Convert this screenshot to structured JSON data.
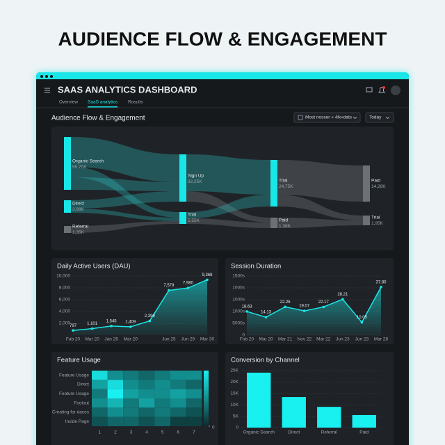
{
  "page_title": "AUDIENCE FLOW & ENGAGEMENT",
  "header": {
    "title": "SAAS ANALYTICS DASHBOARD",
    "tabs": [
      "Overview",
      "SaaS analytics",
      "Rosults"
    ],
    "active_tab": 1
  },
  "section": {
    "title": "Audience Flow & Engagement",
    "filter": "Most nosser + 4lk«dats",
    "range": "Today"
  },
  "chart_data": [
    {
      "type": "sankey",
      "nodes": [
        {
          "name": "Organic Search",
          "value": 55700,
          "value_label": "55,70K",
          "color": "#19e6e6"
        },
        {
          "name": "Direct",
          "value": 3980,
          "value_label": "3,98K",
          "color": "#19e6e6"
        },
        {
          "name": "Referral",
          "value": 1350,
          "value_label": "1,35K",
          "color": "#6b7176"
        },
        {
          "name": "Sign Up",
          "value": 32250,
          "value_label": "32,25K",
          "color": "#19e6e6"
        },
        {
          "name": "Trial",
          "value": 5550,
          "value_label": "5,55K",
          "color": "#19e6e6"
        },
        {
          "name": "Trial",
          "value": 24750,
          "value_label": "24,75K",
          "color": "#19e6e6"
        },
        {
          "name": "Paid",
          "value": 1380,
          "value_label": "1,38K",
          "color": "#6b7176"
        },
        {
          "name": "Paid",
          "value": 14280,
          "value_label": "14,28K",
          "color": "#6b7176"
        },
        {
          "name": "Trial",
          "value": 1950,
          "value_label": "1,95K",
          "color": "#6b7176"
        }
      ]
    },
    {
      "type": "line",
      "title": "Daily Active Users (DAU)",
      "categories": [
        "Fab 20",
        "Mar 20",
        "Jan 26",
        "Mar 20",
        null,
        "Jun 25",
        "Jun 29",
        "Mar 30"
      ],
      "values": [
        797,
        1101,
        1545,
        1409,
        2399,
        7579,
        7980,
        9368
      ],
      "value_labels": [
        "797",
        "1,101",
        "1,545",
        "1,409",
        "2,399",
        "7,579",
        "7,980",
        "9,368"
      ],
      "ylim": [
        0,
        11000
      ],
      "yticks": [
        {
          "value": 2000,
          "label": "2,000"
        },
        {
          "value": 4000,
          "label": "4,000"
        },
        {
          "value": 6000,
          "label": "6,000"
        },
        {
          "value": 8000,
          "label": "8,000"
        },
        {
          "value": 10000,
          "label": "10,000"
        }
      ],
      "color": "#19e6e6",
      "grid": true
    },
    {
      "type": "line",
      "title": "Session Duration",
      "categories": [
        "Fob 20",
        "Mar 20",
        "Mar 21",
        "Nov 22",
        "Mar 22",
        "Jun 23",
        "Jun 23",
        "Mar 28"
      ],
      "values": [
        18.63,
        14.13,
        22.26,
        19.07,
        22.17,
        28.21,
        10.05,
        37.8
      ],
      "value_labels": [
        "18.63",
        "14.13",
        "22.26",
        "19.07",
        "22.17",
        "28.21",
        "10.05",
        "37.80"
      ],
      "ylim": [
        0,
        47
      ],
      "y_axis_labels": [
        "1500s",
        "1000s",
        "1000s",
        "1000s",
        "5000s",
        "0"
      ],
      "color": "#19e6e6",
      "grid": true
    },
    {
      "type": "heatmap",
      "title": "Feature Usage",
      "rows": [
        "Feature Usage",
        "Direct",
        "Feature Usage",
        "Foolout",
        "Creating for daces",
        "Inxide Page"
      ],
      "x": [
        1,
        2,
        3,
        4,
        5,
        6,
        7
      ],
      "values": [
        [
          0.9,
          0.5,
          0.4,
          0.3,
          0.4,
          0.5,
          0.5
        ],
        [
          0.6,
          0.9,
          0.5,
          0.4,
          0.5,
          0.4,
          0.3
        ],
        [
          0.4,
          1.0,
          0.6,
          0.5,
          0.5,
          0.6,
          0.5
        ],
        [
          0.5,
          0.7,
          0.4,
          0.6,
          0.4,
          0.5,
          0.3
        ],
        [
          0.3,
          0.5,
          0.4,
          0.3,
          0.4,
          0.3,
          0.2
        ],
        [
          0.2,
          0.3,
          0.3,
          0.2,
          0.3,
          0.1,
          0.1
        ]
      ],
      "clim": [
        0,
        1
      ],
      "cticks": [
        0
      ]
    },
    {
      "type": "bar",
      "title": "Conversion by Channel",
      "categories": [
        "Organic Search",
        "Direct",
        "Referral",
        "Paid"
      ],
      "values": [
        24100,
        13400,
        9100,
        5500
      ],
      "ylim": [
        0,
        25000
      ],
      "yticks": [
        0,
        {
          "value": 5000,
          "label": "5K"
        },
        {
          "value": 10000,
          "label": "10K"
        },
        {
          "value": 15000,
          "label": "15K"
        },
        {
          "value": 20000,
          "label": "20K"
        },
        {
          "value": 25000,
          "label": "25K"
        }
      ],
      "color": "#19f0f0",
      "grid": true
    }
  ]
}
